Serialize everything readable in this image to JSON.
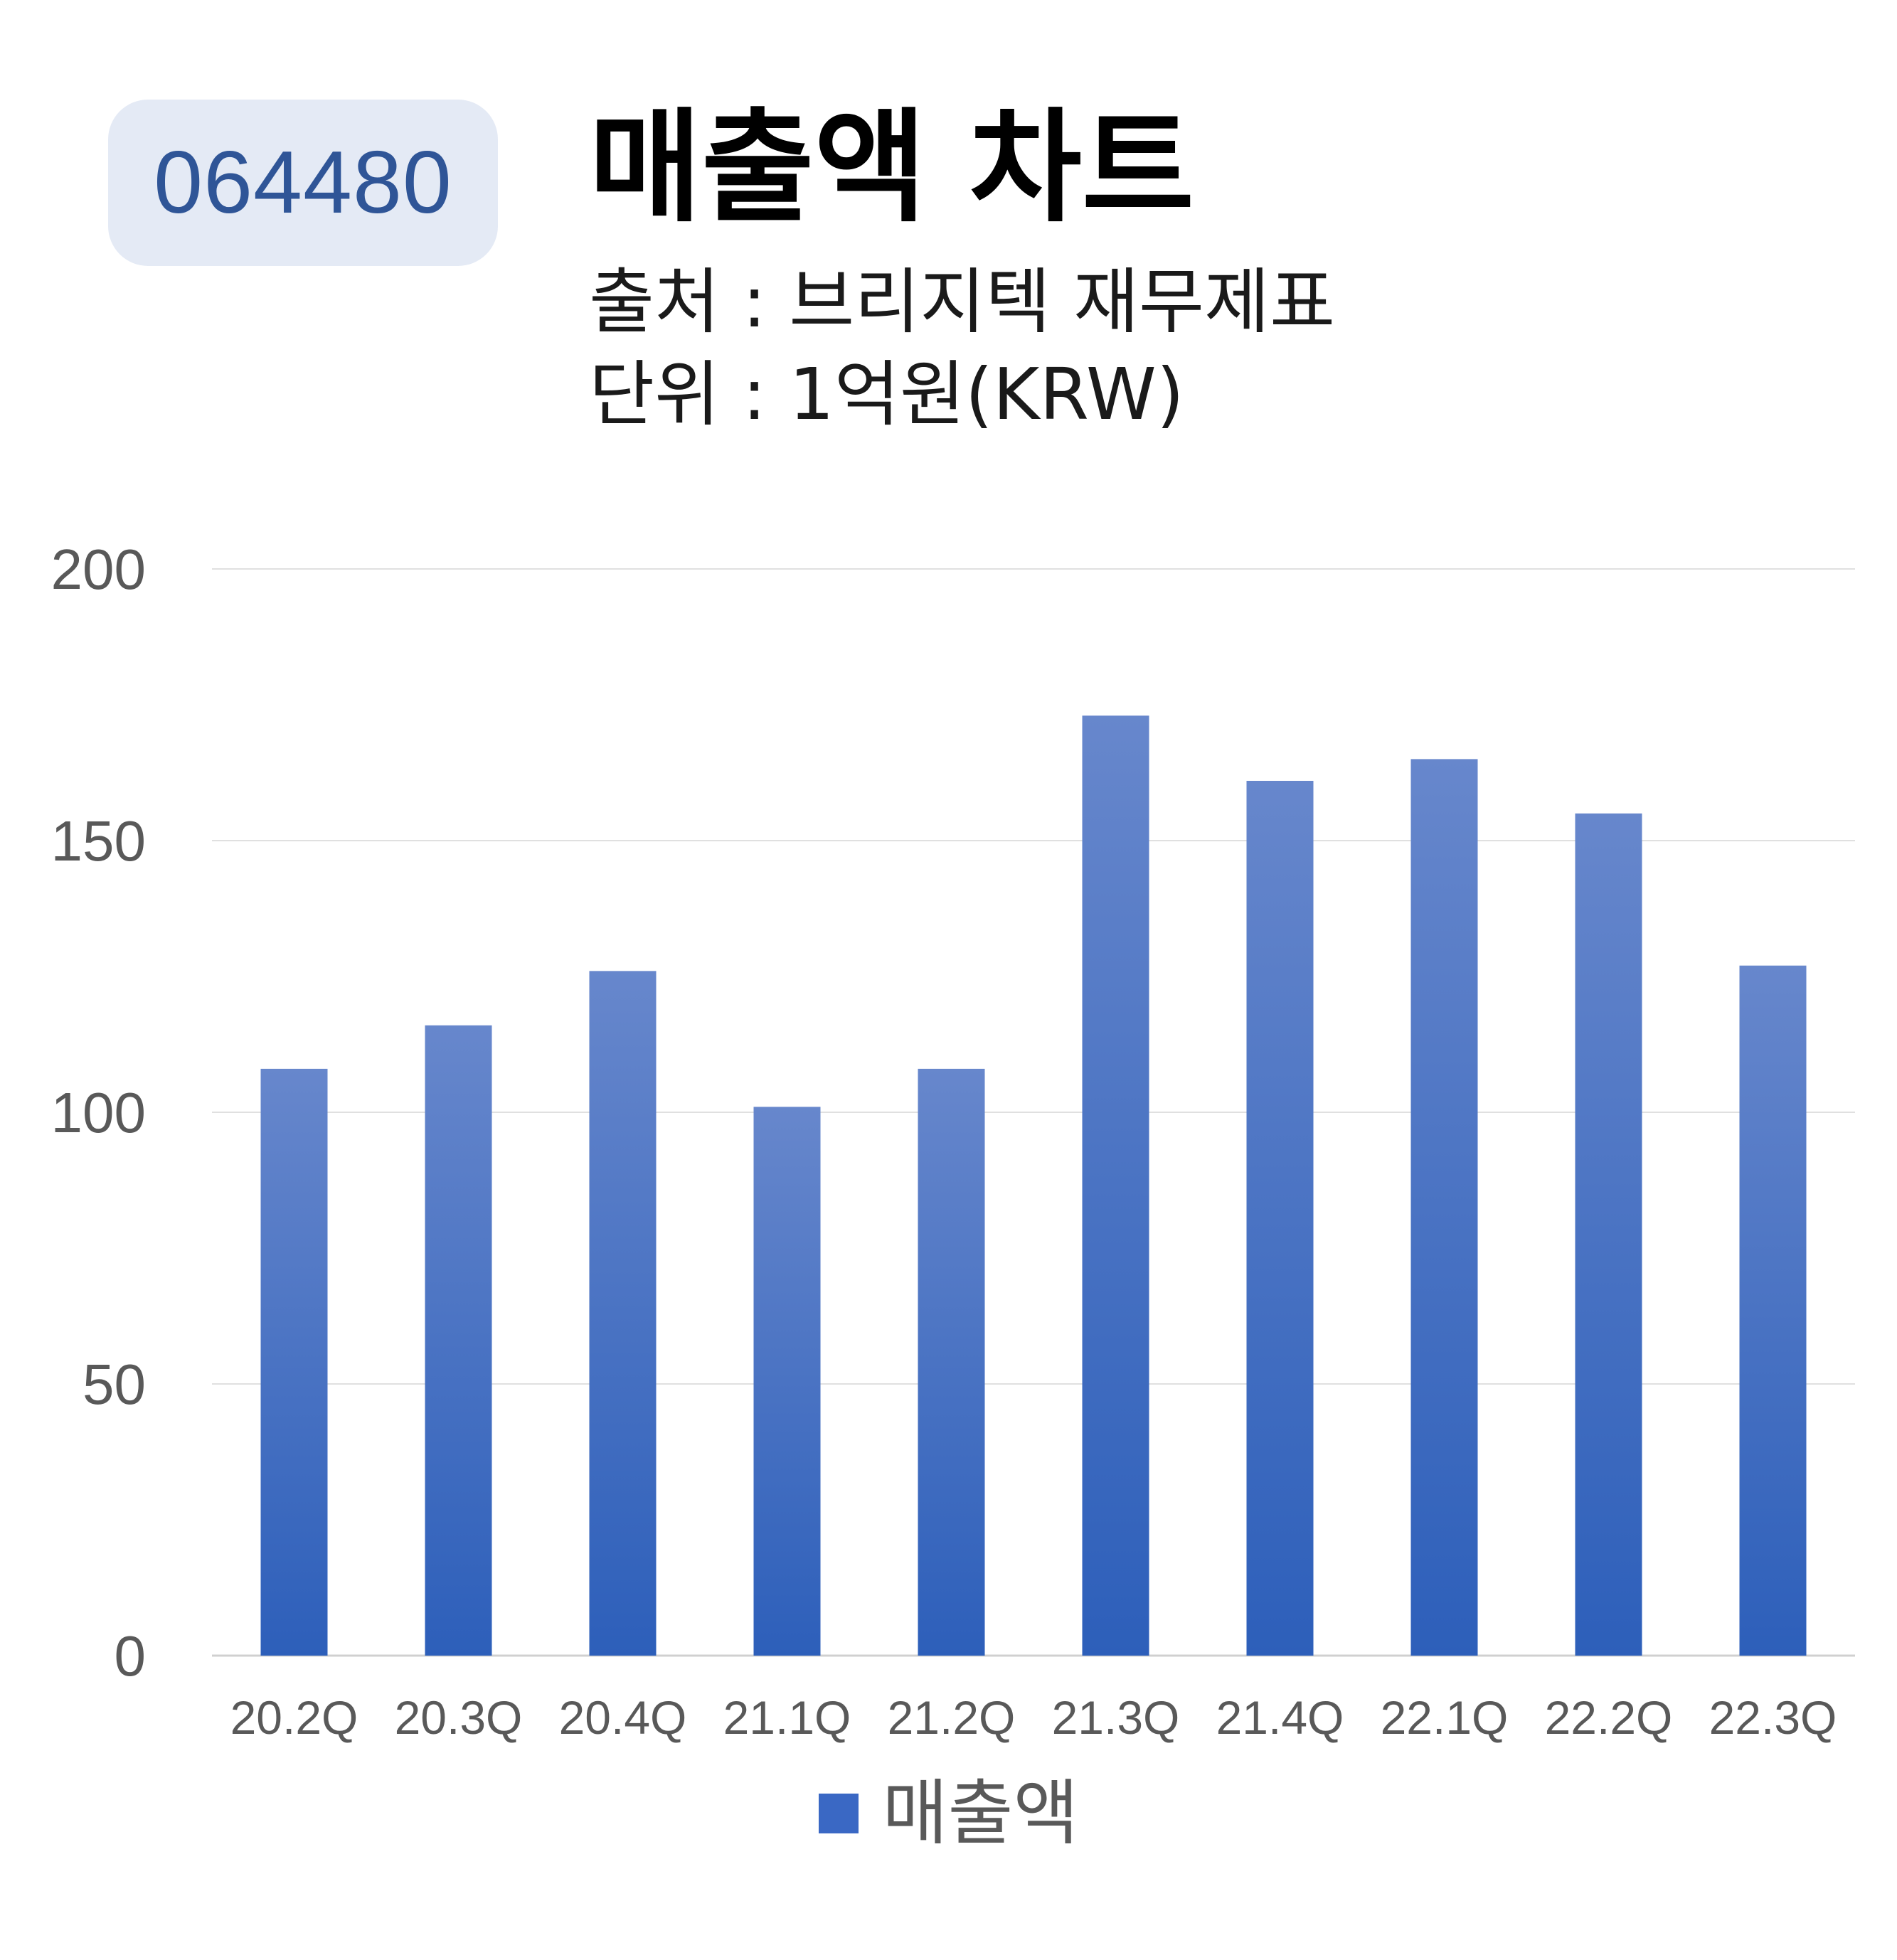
{
  "ticker": "064480",
  "title": "매출액 차트",
  "source": "출처 : 브리지텍 재무제표",
  "unit": "단위 : 1억원(KRW)",
  "bar_color": "#3a68c4",
  "bar_color_top": "#6787cc",
  "bar_color_bottom": "#2d5fba",
  "chart_data": {
    "type": "bar",
    "categories": [
      "20.2Q",
      "20.3Q",
      "20.4Q",
      "21.1Q",
      "21.2Q",
      "21.3Q",
      "21.4Q",
      "22.1Q",
      "22.2Q",
      "22.3Q"
    ],
    "series": [
      {
        "name": "매출액",
        "values": [
          108,
          116,
          126,
          101,
          108,
          173,
          161,
          165,
          155,
          127
        ]
      }
    ],
    "yticks": [
      0,
      50,
      100,
      150,
      200
    ],
    "ylim": [
      0,
      200
    ],
    "grid": true,
    "legend": "bottom"
  }
}
